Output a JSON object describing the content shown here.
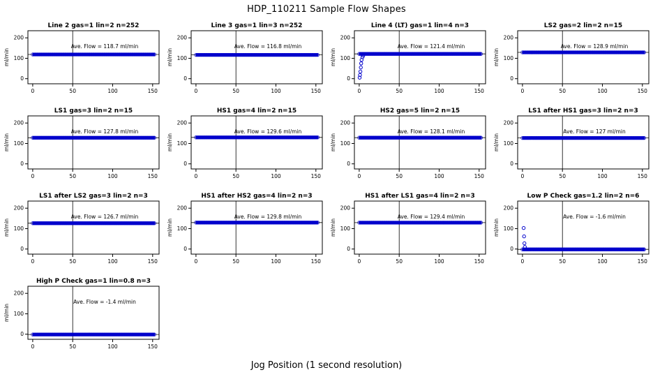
{
  "page_title": "HDP_110211  Sample Flow Shapes",
  "x_axis_label": "Jog Position (1 second resolution)",
  "chart_data": {
    "type": "scatter",
    "title": "HDP_110211  Sample Flow Shapes",
    "xlabel": "Jog Position (1 second resolution)",
    "shared": {
      "ylabel": "ml/min",
      "xticks": [
        0,
        50,
        100,
        150
      ],
      "yticks": [
        0,
        100,
        200
      ],
      "xlim": [
        -6,
        158
      ],
      "ylim": [
        -25,
        235
      ],
      "vline_x": 50,
      "band_x_range": [
        0,
        153
      ],
      "point_color": "#0000CC",
      "axis_color": "#000000",
      "grid": false,
      "annotation_y": 150,
      "annotation_x": 90
    },
    "panels": [
      {
        "title": "Line 2 gas=1 lin=2 n=252",
        "ave_flow": 118.7,
        "band_y": 118.7,
        "annotation": "Ave. Flow =  118.7  ml/min",
        "extra_points": []
      },
      {
        "title": "Line 3 gas=1 lin=3 n=252",
        "ave_flow": 116.8,
        "band_y": 116.8,
        "annotation": "Ave. Flow =  116.8  ml/min",
        "extra_points": []
      },
      {
        "title": "Line 4 (LT) gas=1 lin=4 n=3",
        "ave_flow": 121.4,
        "band_y": 121.4,
        "annotation": "Ave. Flow =  121.4  ml/min",
        "extra_points": [
          [
            0.5,
            5
          ],
          [
            1,
            18
          ],
          [
            1.5,
            35
          ],
          [
            2,
            55
          ],
          [
            2.5,
            75
          ],
          [
            3,
            92
          ],
          [
            4,
            105
          ],
          [
            5,
            113
          ]
        ]
      },
      {
        "title": "LS2 gas=2 lin=2 n=15",
        "ave_flow": 128.9,
        "band_y": 128.9,
        "annotation": "Ave. Flow =  128.9  ml/min",
        "extra_points": []
      },
      {
        "title": "LS1 gas=3 lin=2 n=15",
        "ave_flow": 127.8,
        "band_y": 127.8,
        "annotation": "Ave. Flow =  127.8  ml/min",
        "extra_points": []
      },
      {
        "title": "HS1 gas=4 lin=2 n=15",
        "ave_flow": 129.6,
        "band_y": 129.6,
        "annotation": "Ave. Flow =  129.6  ml/min",
        "extra_points": []
      },
      {
        "title": "HS2 gas=5 lin=2 n=15",
        "ave_flow": 128.1,
        "band_y": 128.1,
        "annotation": "Ave. Flow =  128.1  ml/min",
        "extra_points": []
      },
      {
        "title": "LS1 after HS1 gas=3 lin=2 n=3",
        "ave_flow": 127,
        "band_y": 127,
        "annotation": "Ave. Flow =  127  ml/min",
        "extra_points": []
      },
      {
        "title": "LS1 after LS2 gas=3 lin=2 n=3",
        "ave_flow": 126.7,
        "band_y": 126.7,
        "annotation": "Ave. Flow =  126.7  ml/min",
        "extra_points": []
      },
      {
        "title": "HS1 after HS2 gas=4 lin=2 n=3",
        "ave_flow": 129.8,
        "band_y": 129.8,
        "annotation": "Ave. Flow =  129.8  ml/min",
        "extra_points": []
      },
      {
        "title": "HS1 after LS1 gas=4 lin=2 n=3",
        "ave_flow": 129.4,
        "band_y": 129.4,
        "annotation": "Ave. Flow =  129.4  ml/min",
        "extra_points": []
      },
      {
        "title": "Low P Check gas=1.2 lin=2 n=6",
        "ave_flow": -1.6,
        "band_y": -1.6,
        "annotation": "Ave. Flow =  -1.6  ml/min",
        "extra_points": [
          [
            1.5,
            103
          ],
          [
            2,
            62
          ],
          [
            2.5,
            28
          ],
          [
            3,
            10
          ]
        ]
      },
      {
        "title": "High P Check gas=1 lin=0.8 n=3",
        "ave_flow": -1.4,
        "band_y": -1.4,
        "annotation": "Ave. Flow =  -1.4  ml/min",
        "extra_points": []
      }
    ]
  }
}
